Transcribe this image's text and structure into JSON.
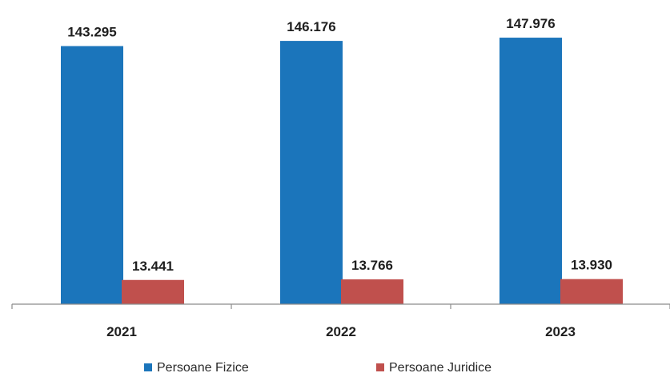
{
  "chart_data": {
    "type": "bar",
    "categories": [
      "2021",
      "2022",
      "2023"
    ],
    "series": [
      {
        "name": "Persoane Fizice",
        "values": [
          143295,
          146176,
          147976
        ],
        "labels": [
          "143.295",
          "146.176",
          "147.976"
        ],
        "color": "#1b75bb"
      },
      {
        "name": "Persoane Juridice",
        "values": [
          13441,
          13766,
          13930
        ],
        "labels": [
          "13.441",
          "13.766",
          "13.930"
        ],
        "color": "#c0504d"
      }
    ],
    "ylim": [
      0,
      160000
    ],
    "grid": false,
    "legend_position": "bottom"
  }
}
